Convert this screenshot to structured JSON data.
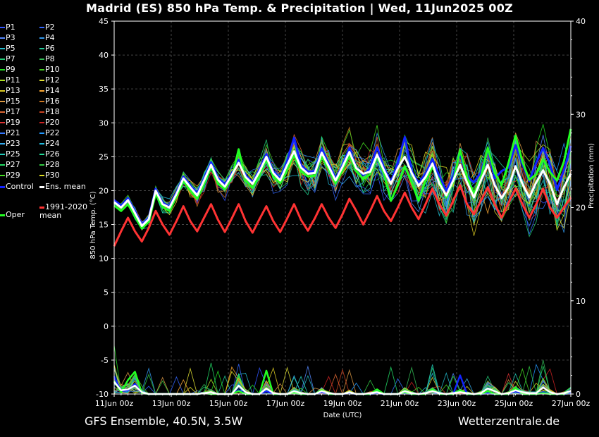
{
  "title": "Madrid  (ES)  850 hPa Temp. & Precipitation | Wed, 11Jun2025 00Z",
  "footer": {
    "model": "GFS Ensemble, 40.5N, 3.5W",
    "site": "Wetterzentrale.de"
  },
  "legend": [
    {
      "label": "P1",
      "color": "#3355ff"
    },
    {
      "label": "P2",
      "color": "#3366ff"
    },
    {
      "label": "P3",
      "color": "#5588ff"
    },
    {
      "label": "P4",
      "color": "#3399ee"
    },
    {
      "label": "P5",
      "color": "#22bbcc"
    },
    {
      "label": "P6",
      "color": "#22cc99"
    },
    {
      "label": "P7",
      "color": "#22cc77"
    },
    {
      "label": "P8",
      "color": "#33bb55"
    },
    {
      "label": "P9",
      "color": "#22dd22"
    },
    {
      "label": "P10",
      "color": "#44cc22"
    },
    {
      "label": "P11",
      "color": "#aadd22"
    },
    {
      "label": "P12",
      "color": "#dddd33"
    },
    {
      "label": "P13",
      "color": "#ddcc22"
    },
    {
      "label": "P14",
      "color": "#ffaa33"
    },
    {
      "label": "P15",
      "color": "#dd9944"
    },
    {
      "label": "P16",
      "color": "#cc7722"
    },
    {
      "label": "P17",
      "color": "#dd6633"
    },
    {
      "label": "P18",
      "color": "#cc4422"
    },
    {
      "label": "P19",
      "color": "#dd3333"
    },
    {
      "label": "P20",
      "color": "#cc2222"
    },
    {
      "label": "P21",
      "color": "#3377ff"
    },
    {
      "label": "P22",
      "color": "#2299ff"
    },
    {
      "label": "P23",
      "color": "#33aaee"
    },
    {
      "label": "P24",
      "color": "#22bbdd"
    },
    {
      "label": "P25",
      "color": "#22ccbb"
    },
    {
      "label": "P26",
      "color": "#22dd99"
    },
    {
      "label": "P27",
      "color": "#22dd66"
    },
    {
      "label": "P28",
      "color": "#33cc44"
    },
    {
      "label": "P29",
      "color": "#44dd22"
    },
    {
      "label": "P30",
      "color": "#dddd22"
    },
    {
      "label": "Control",
      "color": "#1122ff"
    },
    {
      "label": "Ens. mean",
      "color": "#ffffff"
    },
    {
      "label": "Oper",
      "color": "#22ff22"
    },
    {
      "label": "1991-2020 mean",
      "color": "#ff3333"
    }
  ],
  "chart_data": {
    "type": "line",
    "x_labels": [
      "11Jun 00z",
      "13Jun 00z",
      "15Jun 00z",
      "17Jun 00z",
      "19Jun 00z",
      "21Jun 00z",
      "23Jun 00z",
      "25Jun 00z",
      "27Jun 00z"
    ],
    "xlabel": "Date (UTC)",
    "ylabel": "850 hPa Temp. (°C)",
    "y2label": "Precipitation (mm)",
    "ylim": [
      -10,
      45
    ],
    "y2lim": [
      0,
      40
    ],
    "yticks": [
      -10,
      -5,
      0,
      5,
      10,
      15,
      20,
      25,
      30,
      35,
      40,
      45
    ],
    "y2ticks": [
      0,
      10,
      20,
      30,
      40
    ],
    "grid": true,
    "time_step_hours": 6,
    "series": [
      {
        "name": "Ens. mean",
        "values": [
          18.3,
          17.5,
          18.6,
          16.7,
          14.8,
          15.8,
          20.0,
          18.0,
          17.5,
          19.5,
          21.8,
          20.5,
          19.3,
          21.5,
          23.8,
          21.6,
          20.6,
          22.3,
          24.1,
          22.0,
          21.0,
          22.8,
          25.0,
          22.6,
          21.5,
          23.8,
          25.8,
          23.4,
          22.5,
          22.6,
          25.6,
          23.6,
          21.5,
          23.5,
          25.7,
          23.3,
          22.5,
          22.8,
          25.3,
          23.0,
          21.0,
          23.3,
          25.0,
          22.6,
          20.7,
          22.0,
          24.0,
          21.0,
          19.3,
          21.5,
          23.8,
          21.2,
          19.0,
          21.5,
          23.8,
          20.8,
          18.9,
          20.5,
          23.6,
          21.0,
          19.0,
          21.2,
          23.0,
          21.0,
          18.0,
          20.5,
          22.5
        ]
      },
      {
        "name": "Control",
        "values": [
          18.6,
          17.8,
          18.9,
          17.0,
          15.0,
          16.0,
          20.3,
          18.2,
          17.7,
          19.8,
          22.1,
          20.8,
          19.6,
          21.8,
          24.2,
          21.9,
          20.9,
          22.6,
          24.5,
          22.3,
          21.2,
          23.2,
          25.4,
          22.9,
          21.8,
          24.4,
          27.8,
          23.8,
          22.8,
          22.9,
          26.2,
          24.0,
          21.8,
          23.7,
          26.3,
          23.4,
          22.3,
          23.3,
          26.4,
          23.4,
          21.3,
          24.1,
          27.9,
          22.9,
          21.1,
          22.5,
          24.7,
          22.1,
          20.0,
          22.2,
          25.4,
          22.1,
          21.2,
          22.7,
          26.1,
          21.8,
          22.9,
          23.4,
          26.7,
          23.9,
          21.4,
          24.1,
          26.3,
          23.9,
          20.1,
          23.0,
          26.6
        ]
      },
      {
        "name": "Oper",
        "values": [
          17.8,
          17.0,
          18.0,
          16.2,
          14.4,
          15.4,
          19.5,
          17.6,
          17.0,
          19.1,
          21.4,
          20.0,
          18.8,
          21.0,
          23.5,
          21.0,
          20.2,
          21.9,
          26.1,
          21.5,
          20.4,
          22.3,
          24.6,
          22.1,
          21.1,
          23.2,
          25.2,
          22.9,
          22.1,
          22.2,
          25.1,
          23.1,
          21.1,
          23.0,
          25.1,
          22.9,
          21.7,
          22.4,
          25.1,
          22.5,
          18.5,
          20.8,
          23.6,
          21.2,
          18.5,
          21.5,
          23.5,
          21.5,
          19.0,
          21.3,
          26.0,
          22.0,
          19.5,
          22.0,
          26.3,
          22.6,
          20.8,
          24.1,
          28.1,
          24.3,
          21.6,
          22.4,
          24.6,
          22.7,
          21.5,
          24.3,
          29.1
        ]
      },
      {
        "name": "1991-2020 mean",
        "values": [
          11.8,
          14.0,
          16.0,
          14.0,
          12.5,
          14.5,
          17.0,
          15.0,
          13.5,
          15.5,
          17.7,
          15.5,
          14.0,
          16.0,
          18.0,
          15.7,
          13.9,
          15.9,
          18.0,
          15.5,
          13.8,
          15.8,
          17.7,
          15.5,
          13.9,
          15.9,
          18.0,
          15.7,
          14.1,
          15.9,
          18.0,
          16.0,
          14.5,
          16.5,
          18.8,
          17.0,
          15.0,
          17.0,
          19.2,
          17.0,
          15.5,
          17.5,
          19.7,
          17.5,
          15.8,
          18.0,
          20.3,
          18.0,
          16.3,
          18.5,
          20.8,
          18.0,
          16.5,
          18.5,
          20.5,
          18.0,
          16.0,
          18.2,
          20.3,
          18.0,
          16.0,
          18.0,
          20.3,
          17.5,
          16.0,
          17.5,
          19.0
        ]
      }
    ],
    "precip_series": [
      {
        "name": "Ens. mean",
        "values": [
          1.3,
          0.4,
          0.5,
          0.9,
          0.2,
          0.0,
          0.0,
          0.0,
          0.0,
          0.0,
          0.0,
          0.0,
          0.0,
          0.1,
          0.2,
          0.0,
          0.0,
          0.0,
          0.9,
          0.2,
          0.0,
          0.0,
          0.6,
          0.1,
          0.0,
          0.0,
          0.3,
          0.1,
          0.0,
          0.0,
          0.3,
          0.1,
          0.0,
          0.0,
          0.2,
          0.0,
          0.0,
          0.1,
          0.2,
          0.0,
          0.0,
          0.0,
          0.3,
          0.1,
          0.0,
          0.1,
          0.3,
          0.1,
          0.0,
          0.1,
          0.2,
          0.1,
          0.0,
          0.1,
          0.6,
          0.3,
          0.0,
          0.1,
          0.4,
          0.2,
          0.1,
          0.1,
          0.7,
          0.2,
          0.0,
          0.1,
          0.3
        ]
      },
      {
        "name": "Control",
        "values": [
          1.9,
          0.3,
          0.4,
          1.1,
          0.1,
          0.0,
          0.0,
          0.0,
          0.0,
          0.0,
          0.0,
          0.0,
          0.0,
          0.1,
          0.1,
          0.0,
          0.0,
          0.0,
          0.4,
          0.0,
          0.0,
          0.0,
          0.3,
          0.0,
          0.0,
          0.0,
          0.1,
          0.0,
          0.0,
          0.0,
          0.2,
          0.0,
          0.0,
          0.0,
          0.1,
          0.0,
          0.0,
          0.0,
          0.1,
          0.0,
          0.0,
          0.0,
          0.1,
          0.0,
          0.0,
          0.1,
          0.3,
          0.0,
          0.0,
          0.0,
          2.0,
          0.0,
          0.0,
          0.0,
          0.1,
          0.0,
          0.0,
          0.0,
          0.3,
          0.0,
          0.0,
          0.0,
          0.2,
          0.0,
          0.0,
          0.0,
          0.1
        ]
      },
      {
        "name": "Oper",
        "values": [
          1.4,
          0.2,
          1.5,
          2.4,
          0.1,
          0.0,
          0.0,
          0.0,
          0.0,
          0.0,
          0.0,
          0.0,
          0.0,
          0.1,
          0.0,
          0.0,
          0.0,
          0.0,
          0.3,
          0.0,
          0.0,
          0.0,
          2.5,
          0.0,
          0.0,
          0.0,
          0.1,
          0.0,
          0.0,
          0.0,
          0.4,
          0.0,
          0.0,
          0.0,
          0.2,
          0.0,
          0.0,
          0.0,
          0.5,
          0.0,
          0.0,
          0.0,
          0.2,
          0.0,
          0.0,
          0.0,
          0.5,
          0.0,
          0.0,
          0.0,
          0.4,
          0.0,
          0.0,
          0.0,
          0.3,
          0.0,
          0.0,
          0.0,
          0.7,
          0.0,
          0.0,
          0.0,
          0.1,
          0.0,
          0.0,
          0.0,
          0.3
        ]
      }
    ]
  }
}
